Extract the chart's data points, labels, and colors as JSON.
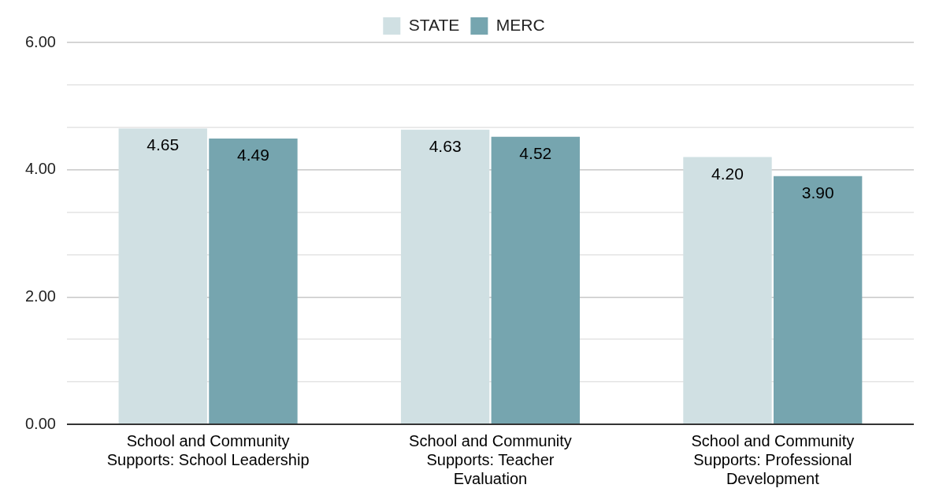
{
  "chart_data": {
    "type": "bar",
    "categories": [
      "School and Community Supports: School Leadership",
      "School and Community Supports: Teacher Evaluation",
      "School and Community Supports: Professional Development"
    ],
    "series": [
      {
        "name": "STATE",
        "color": "#d0e0e3",
        "values": [
          4.65,
          4.63,
          4.2
        ],
        "value_labels": [
          "4.65",
          "4.63",
          "4.20"
        ]
      },
      {
        "name": "MERC",
        "color": "#76a5af",
        "values": [
          4.49,
          4.52,
          3.9
        ],
        "value_labels": [
          "4.49",
          "4.52",
          "3.90"
        ]
      }
    ],
    "ylim": [
      0,
      6
    ],
    "yticks": [
      {
        "value": 0,
        "label": "0.00"
      },
      {
        "value": 0.667,
        "label": null
      },
      {
        "value": 1.333,
        "label": null
      },
      {
        "value": 2,
        "label": "2.00"
      },
      {
        "value": 2.667,
        "label": null
      },
      {
        "value": 3.333,
        "label": null
      },
      {
        "value": 4,
        "label": "4.00"
      },
      {
        "value": 4.667,
        "label": null
      },
      {
        "value": 5.333,
        "label": null
      },
      {
        "value": 6,
        "label": "6.00"
      }
    ],
    "grid": "y",
    "legend": "top"
  }
}
